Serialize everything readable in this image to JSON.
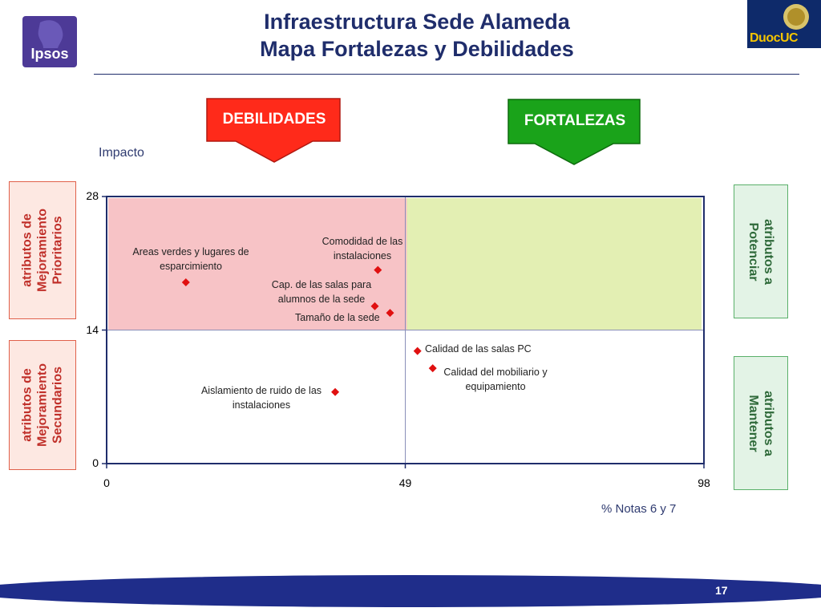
{
  "header": {
    "title_line1": "Infraestructura Sede Alameda",
    "title_line2": "Mapa Fortalezas y Debilidades",
    "logo_left": "Ipsos",
    "logo_right": "DuocUC"
  },
  "callouts": {
    "weak": "DEBILIDADES",
    "strong": "FORTALEZAS"
  },
  "quadrant_labels": {
    "top_left": [
      "atributos de",
      "Mejoramiento",
      "Prioritarios"
    ],
    "bottom_left": [
      "atributos de",
      "Mejoramiento",
      "Secundarios"
    ],
    "top_right": [
      "atributos a",
      "Potenciar"
    ],
    "bottom_right": [
      "atributos a",
      "Mantener"
    ]
  },
  "colors": {
    "title": "#1f2d6b",
    "weak_arrow": "#ff2a1a",
    "strong_arrow": "#1aa31a",
    "weak_zone": "#f7c3c6",
    "strong_zone": "#e3efb3",
    "marker": "#e01010",
    "axis": "#1f2d6b",
    "box_weak_border": "#e0604a",
    "box_strong_border": "#5ab06a",
    "footer": "#1f2d8a"
  },
  "chart_data": {
    "type": "scatter",
    "xlabel": "% Notas 6 y 7",
    "ylabel": "Impacto",
    "xlim": [
      0,
      98
    ],
    "ylim": [
      0,
      28
    ],
    "x_ticks": [
      0,
      49,
      98
    ],
    "y_ticks": [
      0,
      14,
      28
    ],
    "reference_lines": {
      "x": 49,
      "y": 14
    },
    "points": [
      {
        "label": "Areas verdes y lugares de esparcimiento",
        "x": 13,
        "y": 19
      },
      {
        "label": "Comodidad de las instalaciones",
        "x": 44.5,
        "y": 20.3
      },
      {
        "label": "Cap. de las salas para alumnos de la sede",
        "x": 44,
        "y": 16.5
      },
      {
        "label": "Tamaño de la sede",
        "x": 46.5,
        "y": 15.8
      },
      {
        "label": "Calidad de las salas PC",
        "x": 51,
        "y": 11.8
      },
      {
        "label": "Calidad del mobiliario y equipamiento",
        "x": 53.5,
        "y": 10
      },
      {
        "label": "Aislamiento de ruido de las instalaciones",
        "x": 37.5,
        "y": 7.5
      }
    ]
  },
  "footer": {
    "page_number": "17"
  }
}
